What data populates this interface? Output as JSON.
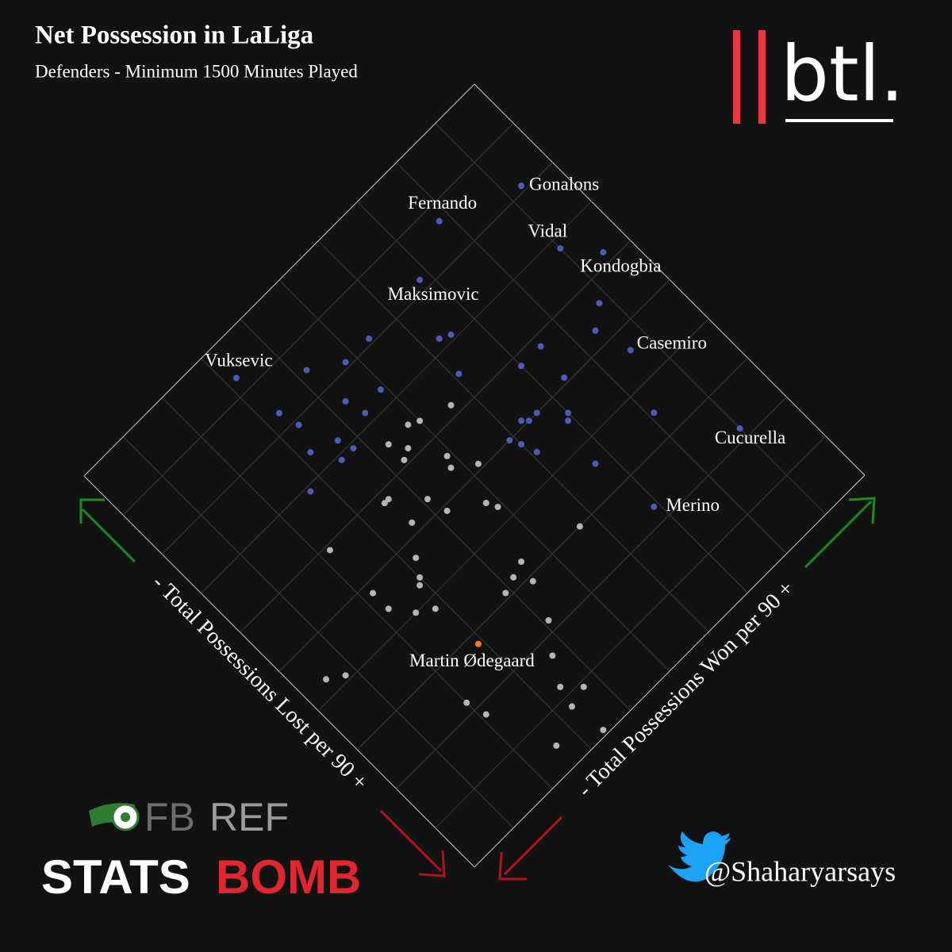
{
  "chart_data": {
    "type": "scatter",
    "title": "Net Possession in LaLiga",
    "subtitle": "Defenders - Minimum 1500 Minutes Played",
    "xlabel": "- Total Possessions Won per 90 +",
    "ylabel": "- Total Possessions Lost per 90 +",
    "xlim": [
      0,
      10
    ],
    "ylim": [
      0,
      10
    ],
    "xticks": [
      0,
      1,
      2,
      3,
      4,
      5,
      6,
      7,
      8,
      9,
      10
    ],
    "yticks": [
      0,
      1,
      2,
      3,
      4,
      5,
      6,
      7,
      8,
      9,
      10
    ],
    "grid": true,
    "series": [
      {
        "color": "#4a5cb8",
        "x": [
          9.3,
          7.8,
          9.0,
          9.5,
          6.8,
          8.6,
          3.2,
          9.0,
          6.9,
          8.8,
          8.4,
          7.5,
          6.5,
          6.3,
          5.4,
          4.8,
          4.2,
          6.1,
          7.0,
          7.4,
          4.9,
          4.3,
          4.4,
          3.3,
          3.4,
          8.1,
          7.0,
          6.9,
          6.6,
          6.4,
          6.3,
          5.9,
          6.0,
          6.1,
          6.7,
          3.8,
          3.7,
          3.5,
          3.2,
          2.7
        ],
        "y": [
          1.9,
          1.3,
          3.2,
          3.8,
          1.8,
          5.4,
          0.7,
          7.8,
          7.7,
          4.4,
          4.7,
          4.2,
          2.9,
          2.8,
          1.9,
          1.9,
          1.5,
          3.5,
          4.2,
          4.9,
          2.7,
          2.4,
          2.8,
          1.7,
          2.1,
          6.5,
          5.4,
          5.5,
          5.0,
          5.0,
          4.9,
          5.0,
          5.2,
          5.5,
          6.4,
          3.1,
          2.8,
          3.1,
          2.6,
          3.1
        ],
        "labels": [
          "Gonalons",
          "Fernando",
          "Vidal",
          "Kondogbia",
          "Maksimovic",
          "Casemiro",
          "Vuksevic",
          "Cucurella",
          "Merino",
          null,
          null,
          null,
          null,
          null,
          null,
          null,
          null,
          null,
          null,
          null,
          null,
          null,
          null,
          null,
          null,
          null,
          null,
          null,
          null,
          null,
          null,
          null,
          null,
          null,
          null,
          null,
          null,
          null,
          null,
          null
        ]
      },
      {
        "color": "#b9b4b4",
        "x": [
          5.6,
          5.0,
          4.8,
          4.3,
          4.5,
          4.3,
          4.9,
          4.8,
          5.2,
          3.6,
          3.5,
          4.1,
          4.2,
          4.8,
          4.9,
          3.6,
          5.7,
          2.2,
          3.2,
          4.5,
          4.2,
          4.4,
          3.0,
          2.9,
          3.9,
          2.2,
          2.2,
          2.5,
          2.8,
          4.1,
          3.7,
          0.5,
          0.8,
          3.4,
          3.7,
          2.0,
          3.3,
          2.1,
          3.4,
          2.6
        ],
        "y": [
          3.8,
          3.6,
          3.5,
          3.5,
          3.8,
          3.9,
          4.4,
          4.6,
          4.9,
          4.2,
          4.2,
          4.7,
          5.1,
          5.5,
          5.7,
          4.8,
          7.0,
          4.1,
          5.3,
          6.7,
          6.8,
          7.1,
          5.6,
          5.7,
          6.9,
          5.2,
          5.6,
          6.0,
          6.2,
          7.8,
          8.3,
          5.7,
          5.9,
          8.8,
          9.1,
          7.8,
          9.2,
          8.2,
          9.9,
          9.5
        ],
        "labels": [
          null,
          null,
          null,
          null,
          null,
          null,
          null,
          null,
          null,
          null,
          null,
          null,
          null,
          null,
          null,
          null,
          null,
          null,
          null,
          null,
          null,
          null,
          null,
          null,
          null,
          null,
          null,
          null,
          null,
          null,
          null,
          null,
          null,
          null,
          null,
          null,
          null,
          null,
          null,
          null
        ]
      },
      {
        "color": "#f07b1c",
        "x": [
          2.9
        ],
        "y": [
          7.2
        ],
        "labels": [
          "Martin Ødegaard"
        ]
      }
    ]
  },
  "branding": {
    "logo": "btl.",
    "fbref": [
      "FB",
      "REF"
    ],
    "statsbomb": [
      "STATS",
      "BOMB"
    ],
    "handle": "@Shaharyarsays"
  }
}
